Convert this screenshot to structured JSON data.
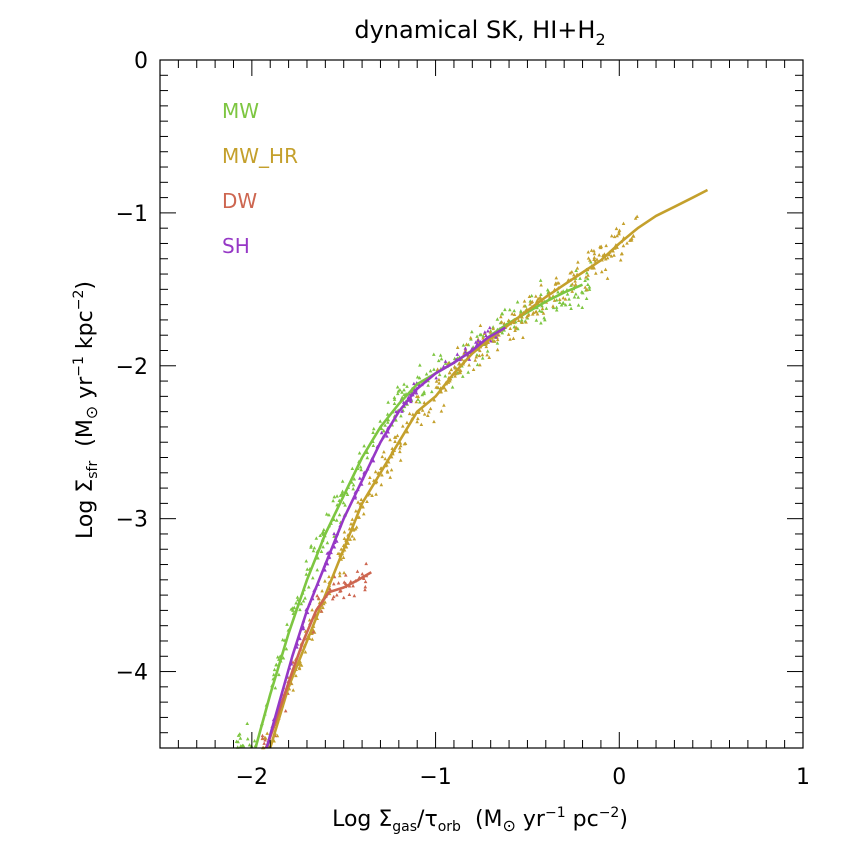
{
  "chart_data": {
    "type": "scatter",
    "title_main": "dynamical SK, HI+H",
    "title_sub": "2",
    "xlabel": {
      "main": "Log Σ",
      "sub1": "gas",
      "mid": "/τ",
      "sub2": "orb",
      "unit_a": "(M",
      "unit_b": " yr",
      "exp1": "−1",
      "unit_c": " pc",
      "exp2": "−2",
      "unit_d": ")"
    },
    "ylabel": {
      "main": "Log Σ",
      "sub1": "sfr",
      "unit_a": "(M",
      "unit_b": " yr",
      "exp1": "−1",
      "unit_c": " kpc",
      "exp2": "−2",
      "unit_d": ")"
    },
    "xlim": [
      -2.5,
      1.0
    ],
    "ylim": [
      -4.5,
      0.0
    ],
    "xticks": [
      {
        "v": -2,
        "label": "−2"
      },
      {
        "v": -1,
        "label": "−1"
      },
      {
        "v": 0,
        "label": "0"
      },
      {
        "v": 1,
        "label": "1"
      }
    ],
    "yticks": [
      {
        "v": -4,
        "label": "−4"
      },
      {
        "v": -3,
        "label": "−3"
      },
      {
        "v": -2,
        "label": "−2"
      },
      {
        "v": -1,
        "label": "−1"
      },
      {
        "v": 0,
        "label": "0"
      }
    ],
    "legend_position": "top-left",
    "series": [
      {
        "name": "MW",
        "color": "#7dc641",
        "line": [
          [
            -1.98,
            -4.5
          ],
          [
            -1.9,
            -4.15
          ],
          [
            -1.8,
            -3.75
          ],
          [
            -1.7,
            -3.4
          ],
          [
            -1.6,
            -3.1
          ],
          [
            -1.5,
            -2.85
          ],
          [
            -1.4,
            -2.6
          ],
          [
            -1.3,
            -2.4
          ],
          [
            -1.2,
            -2.25
          ],
          [
            -1.1,
            -2.12
          ],
          [
            -1.0,
            -2.05
          ],
          [
            -0.9,
            -1.98
          ],
          [
            -0.8,
            -1.9
          ],
          [
            -0.7,
            -1.8
          ],
          [
            -0.6,
            -1.72
          ],
          [
            -0.5,
            -1.65
          ],
          [
            -0.4,
            -1.58
          ],
          [
            -0.3,
            -1.52
          ],
          [
            -0.2,
            -1.47
          ]
        ],
        "scatter": {
          "x_range": [
            -2.1,
            -0.15
          ],
          "spread": 0.14,
          "count": 320
        }
      },
      {
        "name": "MW_HR",
        "color": "#c4a02c",
        "line": [
          [
            -1.9,
            -4.5
          ],
          [
            -1.8,
            -4.1
          ],
          [
            -1.7,
            -3.8
          ],
          [
            -1.6,
            -3.5
          ],
          [
            -1.5,
            -3.2
          ],
          [
            -1.4,
            -2.9
          ],
          [
            -1.3,
            -2.7
          ],
          [
            -1.2,
            -2.5
          ],
          [
            -1.1,
            -2.3
          ],
          [
            -1.0,
            -2.2
          ],
          [
            -0.9,
            -2.05
          ],
          [
            -0.8,
            -1.92
          ],
          [
            -0.7,
            -1.82
          ],
          [
            -0.6,
            -1.73
          ],
          [
            -0.5,
            -1.64
          ],
          [
            -0.4,
            -1.55
          ],
          [
            -0.3,
            -1.47
          ],
          [
            -0.2,
            -1.39
          ],
          [
            -0.1,
            -1.31
          ],
          [
            0.0,
            -1.2
          ],
          [
            0.1,
            -1.1
          ],
          [
            0.2,
            -1.02
          ],
          [
            0.3,
            -0.96
          ],
          [
            0.4,
            -0.9
          ],
          [
            0.48,
            -0.85
          ]
        ],
        "scatter": {
          "x_range": [
            -1.95,
            0.1
          ],
          "spread": 0.12,
          "count": 420
        }
      },
      {
        "name": "DW",
        "color": "#cd6650",
        "line": [
          [
            -1.92,
            -4.5
          ],
          [
            -1.85,
            -4.25
          ],
          [
            -1.78,
            -4.0
          ],
          [
            -1.72,
            -3.8
          ],
          [
            -1.65,
            -3.6
          ],
          [
            -1.58,
            -3.48
          ],
          [
            -1.5,
            -3.45
          ],
          [
            -1.42,
            -3.4
          ],
          [
            -1.35,
            -3.35
          ]
        ],
        "scatter": {
          "x_range": [
            -1.95,
            -1.35
          ],
          "spread": 0.1,
          "count": 60
        }
      },
      {
        "name": "SH",
        "color": "#9638c6",
        "line": [
          [
            -1.92,
            -4.5
          ],
          [
            -1.85,
            -4.2
          ],
          [
            -1.78,
            -3.9
          ],
          [
            -1.7,
            -3.6
          ],
          [
            -1.6,
            -3.3
          ],
          [
            -1.5,
            -3.0
          ],
          [
            -1.4,
            -2.75
          ],
          [
            -1.3,
            -2.5
          ],
          [
            -1.2,
            -2.3
          ],
          [
            -1.1,
            -2.15
          ],
          [
            -1.0,
            -2.05
          ],
          [
            -0.9,
            -1.98
          ],
          [
            -0.8,
            -1.9
          ],
          [
            -0.72,
            -1.82
          ],
          [
            -0.62,
            -1.75
          ]
        ],
        "scatter": {
          "x_range": [
            -1.9,
            -0.62
          ],
          "spread": 0.05,
          "count": 120
        }
      }
    ]
  }
}
